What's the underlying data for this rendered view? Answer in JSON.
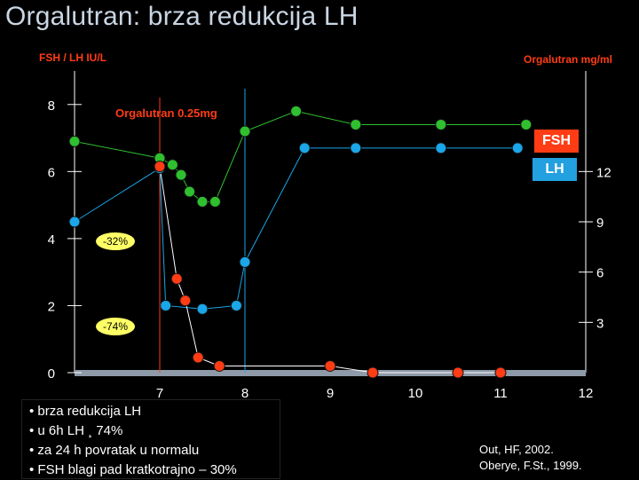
{
  "title": "Orgalutran: brza redukcija LH",
  "annotations": {
    "dose_label": "Orgalutran 0.25mg",
    "pct_32": "-32%",
    "pct_74": "-74%"
  },
  "legend_boxes": {
    "fsh": "FSH",
    "lh": "LH"
  },
  "bullets": [
    "brza redukcija LH",
    "u 6h LH ¸ 74%",
    "za 24 h povratak u normalu",
    "FSH blagi pad kratkotrajno – 30%"
  ],
  "references": [
    "Out, HF, 2002.",
    "Oberye, F.St., 1999."
  ],
  "colors": {
    "fsh": "#2fbf2f",
    "lh": "#1aa6e8",
    "orgalutran": "#ff3c14",
    "title": "#c9d6e3",
    "baseline": "#8f9aa8"
  },
  "chart_data": {
    "type": "line",
    "ylabel": "FSH / LH IU/L",
    "y2label": "Orgalutran mg/ml",
    "xlim": [
      6,
      12
    ],
    "ylim": [
      0,
      9
    ],
    "y2lim": [
      0,
      18
    ],
    "x_ticks": [
      "7",
      "8",
      "9",
      "10",
      "11",
      "12"
    ],
    "y_ticks": [
      "0",
      "2",
      "4",
      "6",
      "8"
    ],
    "y2_ticks": [
      "3",
      "6",
      "9",
      "12"
    ],
    "dose_time": 7.0,
    "series": [
      {
        "key": "fsh",
        "axis": "left",
        "x": [
          6.0,
          7.0,
          7.15,
          7.25,
          7.35,
          7.5,
          7.65,
          8.0,
          8.6,
          9.3,
          10.3,
          11.3
        ],
        "y": [
          6.9,
          6.4,
          6.2,
          5.9,
          5.4,
          5.1,
          5.1,
          7.2,
          7.8,
          7.4,
          7.4,
          7.4
        ]
      },
      {
        "key": "lh",
        "axis": "left",
        "x": [
          6.0,
          7.0,
          7.07,
          7.5,
          7.9,
          8.0,
          8.7,
          9.3,
          10.3,
          11.2
        ],
        "y": [
          4.5,
          6.1,
          2.0,
          1.9,
          2.0,
          3.3,
          6.7,
          6.7,
          6.7,
          6.7
        ]
      },
      {
        "key": "orgalutran",
        "axis": "right",
        "x": [
          7.0,
          7.2,
          7.3,
          7.45,
          7.7,
          9.0,
          9.5,
          10.5,
          11.0
        ],
        "y": [
          12.3,
          5.6,
          4.3,
          0.9,
          0.4,
          0.4,
          0.0,
          0.0,
          0.0
        ]
      }
    ]
  }
}
